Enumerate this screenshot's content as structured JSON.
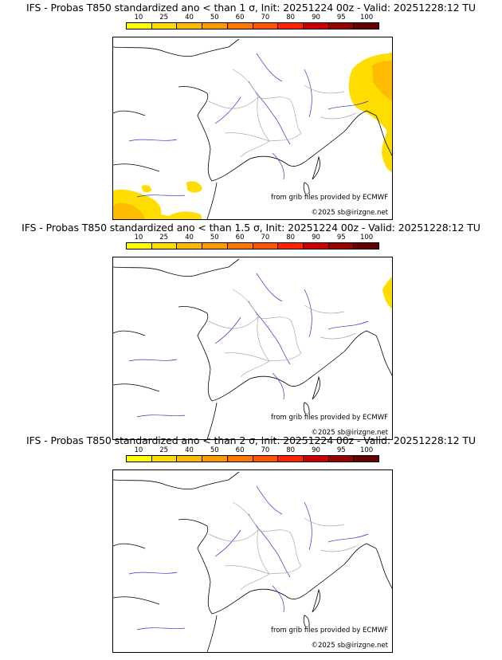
{
  "colorbar": {
    "labels": [
      "10",
      "25",
      "40",
      "50",
      "60",
      "70",
      "80",
      "90",
      "95",
      "100"
    ],
    "colors": [
      "#ffff00",
      "#ffdd00",
      "#ffbb00",
      "#ff9900",
      "#ff7700",
      "#ff5500",
      "#ff2200",
      "#cc0000",
      "#990000",
      "#660000"
    ]
  },
  "panels": [
    {
      "title": "IFS - Probas T850  standardized ano < than 1 σ, Init: 20251224 00z - Valid: 20251228:12 TU",
      "source": "from grib files provided by ECMWF",
      "copyright": "©2025 sb@irizgne.net"
    },
    {
      "title": "IFS - Probas T850  standardized ano < than 1.5 σ, Init: 20251224 00z - Valid: 20251228:12 TU",
      "source": "from grib files provided by ECMWF",
      "copyright": "©2025 sb@irizgne.net"
    },
    {
      "title": "IFS - Probas T850  standardized ano < than 2 σ, Init: 20251224 00z - Valid: 20251228:12 TU",
      "source": "from grib files provided by ECMWF",
      "copyright": "©2025 sb@irizgne.net"
    }
  ]
}
